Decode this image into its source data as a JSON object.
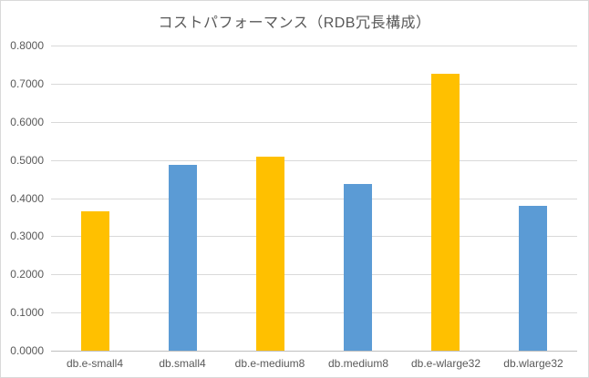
{
  "chart_data": {
    "type": "bar",
    "title": "コストパフォーマンス（RDB冗長構成）",
    "categories": [
      "db.e-small4",
      "db.small4",
      "db.e-medium8",
      "db.medium8",
      "db.e-wlarge32",
      "db.wlarge32"
    ],
    "series": [
      {
        "name": "コストパフォーマンス",
        "values": [
          0.366,
          0.486,
          0.508,
          0.436,
          0.726,
          0.38
        ],
        "point_colors": [
          "#FFC000",
          "#5B9BD5",
          "#FFC000",
          "#5B9BD5",
          "#FFC000",
          "#5B9BD5"
        ]
      }
    ],
    "xlabel": "",
    "ylabel": "",
    "ylim": [
      0.0,
      0.8
    ],
    "ytick_step": 0.1,
    "ytick_labels": [
      "0.0000",
      "0.1000",
      "0.2000",
      "0.3000",
      "0.4000",
      "0.5000",
      "0.6000",
      "0.7000",
      "0.8000"
    ],
    "grid": true,
    "legend": false
  },
  "style": {
    "accent_gold": "#FFC000",
    "accent_blue": "#5B9BD5",
    "gridline_color": "#d9d9d9",
    "axis_line_color": "#bfbfbf",
    "text_color": "#595959",
    "background": "#ffffff"
  }
}
